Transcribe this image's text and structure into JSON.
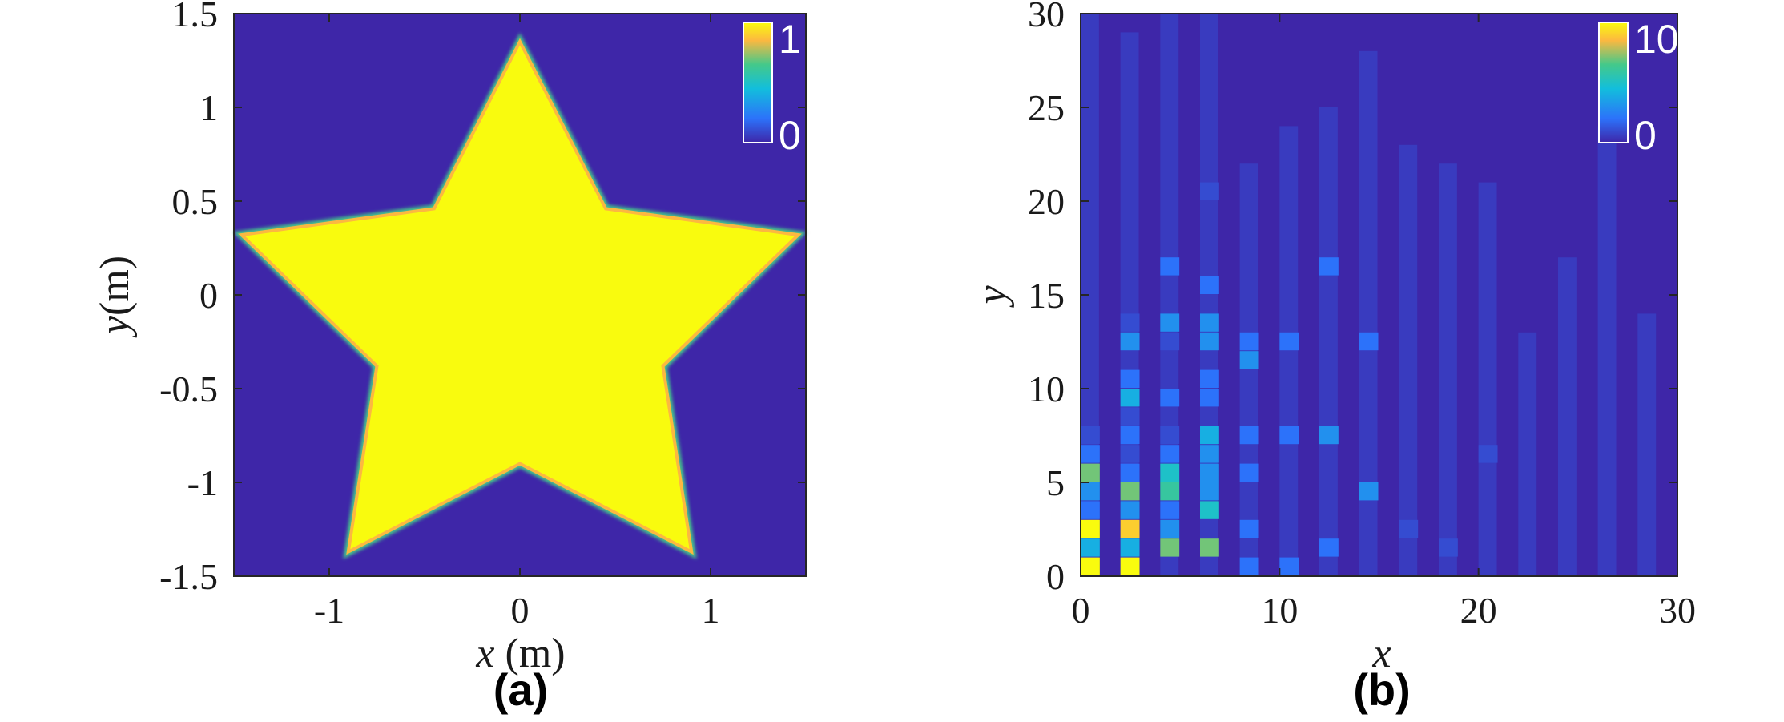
{
  "chart_data": [
    {
      "type": "heatmap",
      "panel_label": "(a)",
      "xlabel": {
        "var": "x",
        "unit": " (m)"
      },
      "ylabel": {
        "var": "y",
        "unit": "(m)"
      },
      "xlim": [
        -1.5,
        1.5
      ],
      "ylim": [
        -1.5,
        1.5
      ],
      "xticks": [
        -1,
        0,
        1
      ],
      "xtick_labels": [
        "-1",
        "0",
        "1"
      ],
      "yticks": [
        -1.5,
        -1,
        -0.5,
        0,
        0.5,
        1,
        1.5
      ],
      "ytick_labels": [
        "-1.5",
        "-1",
        "-0.5",
        "0",
        "0.5",
        "1",
        "1.5"
      ],
      "colorbar": {
        "min": 0,
        "max": 1,
        "labels": [
          "1",
          "0"
        ],
        "placement": "top-right"
      },
      "background_value": 0,
      "shape": {
        "kind": "five-point star, value 1 inside, 0 outside",
        "vertices": [
          [
            0,
            1.35
          ],
          [
            -0.45,
            0.46
          ],
          [
            -1.46,
            0.32
          ],
          [
            -0.75,
            -0.38
          ],
          [
            -0.9,
            -1.37
          ],
          [
            0,
            -0.9
          ],
          [
            0.9,
            -1.37
          ],
          [
            0.75,
            -0.38
          ],
          [
            1.46,
            0.32
          ],
          [
            0.45,
            0.46
          ]
        ]
      }
    },
    {
      "type": "heatmap",
      "panel_label": "(b)",
      "xlabel": {
        "var": "x",
        "unit": ""
      },
      "ylabel": {
        "var": "y",
        "unit": ""
      },
      "xlim": [
        0,
        30
      ],
      "ylim": [
        0,
        30
      ],
      "xticks": [
        0,
        10,
        20,
        30
      ],
      "xtick_labels": [
        "0",
        "10",
        "20",
        "30"
      ],
      "yticks": [
        0,
        5,
        10,
        15,
        20,
        25,
        30
      ],
      "ytick_labels": [
        "0",
        "5",
        "10",
        "15",
        "20",
        "25",
        "30"
      ],
      "colorbar": {
        "min": 0,
        "max": 10,
        "labels": [
          "10",
          "0"
        ],
        "placement": "top-right"
      },
      "background_value": 0,
      "cell_size": 1,
      "cells": [
        {
          "x": 0,
          "y": 0,
          "v": 10
        },
        {
          "x": 0,
          "y": 1,
          "v": 4
        },
        {
          "x": 0,
          "y": 2,
          "v": 10
        },
        {
          "x": 0,
          "y": 3,
          "v": 2
        },
        {
          "x": 0,
          "y": 4,
          "v": 3
        },
        {
          "x": 0,
          "y": 5,
          "v": 7
        },
        {
          "x": 0,
          "y": 6,
          "v": 2
        },
        {
          "x": 0,
          "y": 7,
          "v": 1
        },
        {
          "x": 2,
          "y": 0,
          "v": 10
        },
        {
          "x": 2,
          "y": 1,
          "v": 4
        },
        {
          "x": 2,
          "y": 2,
          "v": 9
        },
        {
          "x": 2,
          "y": 3,
          "v": 3
        },
        {
          "x": 2,
          "y": 4,
          "v": 7
        },
        {
          "x": 2,
          "y": 5,
          "v": 2
        },
        {
          "x": 2,
          "y": 6,
          "v": 1
        },
        {
          "x": 2,
          "y": 7,
          "v": 2
        },
        {
          "x": 2,
          "y": 8,
          "v": 1
        },
        {
          "x": 2,
          "y": 9,
          "v": 4
        },
        {
          "x": 2,
          "y": 10,
          "v": 2
        },
        {
          "x": 2,
          "y": 12,
          "v": 3
        },
        {
          "x": 2,
          "y": 13,
          "v": 1
        },
        {
          "x": 4,
          "y": 1,
          "v": 7
        },
        {
          "x": 4,
          "y": 2,
          "v": 3
        },
        {
          "x": 4,
          "y": 3,
          "v": 2
        },
        {
          "x": 4,
          "y": 4,
          "v": 6
        },
        {
          "x": 4,
          "y": 5,
          "v": 5
        },
        {
          "x": 4,
          "y": 6,
          "v": 2
        },
        {
          "x": 4,
          "y": 7,
          "v": 1
        },
        {
          "x": 4,
          "y": 9,
          "v": 2
        },
        {
          "x": 4,
          "y": 12,
          "v": 1
        },
        {
          "x": 4,
          "y": 13,
          "v": 3
        },
        {
          "x": 4,
          "y": 16,
          "v": 2
        },
        {
          "x": 6,
          "y": 1,
          "v": 7
        },
        {
          "x": 6,
          "y": 3,
          "v": 5
        },
        {
          "x": 6,
          "y": 4,
          "v": 3
        },
        {
          "x": 6,
          "y": 5,
          "v": 3
        },
        {
          "x": 6,
          "y": 6,
          "v": 3
        },
        {
          "x": 6,
          "y": 7,
          "v": 4
        },
        {
          "x": 6,
          "y": 9,
          "v": 2
        },
        {
          "x": 6,
          "y": 10,
          "v": 2
        },
        {
          "x": 6,
          "y": 12,
          "v": 3
        },
        {
          "x": 6,
          "y": 13,
          "v": 3
        },
        {
          "x": 6,
          "y": 15,
          "v": 2
        },
        {
          "x": 6,
          "y": 20,
          "v": 1
        },
        {
          "x": 8,
          "y": 0,
          "v": 2
        },
        {
          "x": 8,
          "y": 2,
          "v": 2
        },
        {
          "x": 8,
          "y": 5,
          "v": 2
        },
        {
          "x": 8,
          "y": 7,
          "v": 2
        },
        {
          "x": 8,
          "y": 11,
          "v": 3
        },
        {
          "x": 8,
          "y": 12,
          "v": 2
        },
        {
          "x": 10,
          "y": 0,
          "v": 2
        },
        {
          "x": 10,
          "y": 7,
          "v": 2
        },
        {
          "x": 10,
          "y": 12,
          "v": 2
        },
        {
          "x": 12,
          "y": 1,
          "v": 2
        },
        {
          "x": 12,
          "y": 7,
          "v": 3
        },
        {
          "x": 12,
          "y": 16,
          "v": 2
        },
        {
          "x": 14,
          "y": 4,
          "v": 3
        },
        {
          "x": 14,
          "y": 12,
          "v": 2
        },
        {
          "x": 16,
          "y": 2,
          "v": 1
        },
        {
          "x": 18,
          "y": 1,
          "v": 1
        },
        {
          "x": 20,
          "y": 6,
          "v": 1
        }
      ],
      "column_stripes": [
        {
          "x": 0,
          "y0": 0,
          "y1": 30,
          "v": 1
        },
        {
          "x": 2,
          "y0": 0,
          "y1": 29,
          "v": 1
        },
        {
          "x": 4,
          "y0": 0,
          "y1": 30,
          "v": 1
        },
        {
          "x": 6,
          "y0": 0,
          "y1": 30,
          "v": 1
        },
        {
          "x": 8,
          "y0": 0,
          "y1": 22,
          "v": 1
        },
        {
          "x": 10,
          "y0": 0,
          "y1": 24,
          "v": 1
        },
        {
          "x": 12,
          "y0": 0,
          "y1": 25,
          "v": 1
        },
        {
          "x": 14,
          "y0": 0,
          "y1": 28,
          "v": 1
        },
        {
          "x": 16,
          "y0": 0,
          "y1": 23,
          "v": 1
        },
        {
          "x": 18,
          "y0": 0,
          "y1": 22,
          "v": 1
        },
        {
          "x": 20,
          "y0": 0,
          "y1": 21,
          "v": 1
        },
        {
          "x": 22,
          "y0": 0,
          "y1": 13,
          "v": 1
        },
        {
          "x": 24,
          "y0": 0,
          "y1": 17,
          "v": 1
        },
        {
          "x": 26,
          "y0": 0,
          "y1": 24,
          "v": 1
        },
        {
          "x": 28,
          "y0": 0,
          "y1": 14,
          "v": 1
        }
      ]
    }
  ]
}
